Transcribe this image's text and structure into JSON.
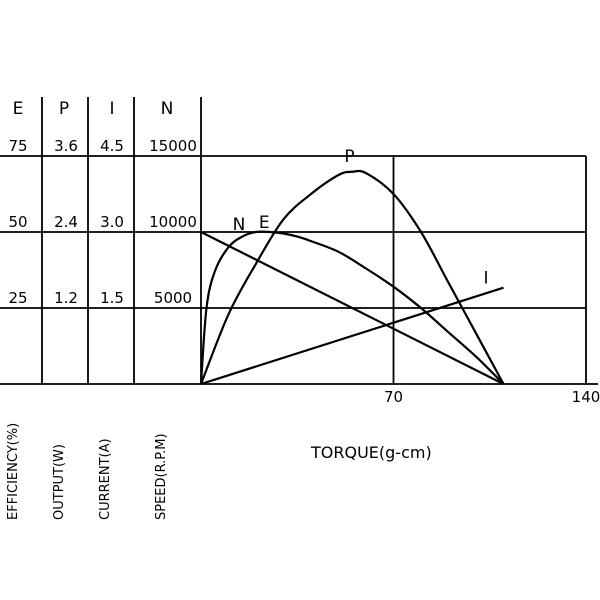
{
  "chart_data": {
    "type": "line",
    "title": "",
    "xlabel": "TORQUE(g-cm)",
    "xlim": [
      0,
      140
    ],
    "x_ticks": [
      {
        "value": 70,
        "label": "70"
      },
      {
        "value": 140,
        "label": "140"
      }
    ],
    "axes": [
      {
        "letter": "E",
        "name": "EFFICIENCY(%)",
        "ticks": [
          "25",
          "50",
          "75"
        ],
        "max": 75
      },
      {
        "letter": "P",
        "name": "OUTPUT(W)",
        "ticks": [
          "1.2",
          "2.4",
          "3.6"
        ],
        "max": 3.6
      },
      {
        "letter": "I",
        "name": "CURRENT(A)",
        "ticks": [
          "1.5",
          "3.0",
          "4.5"
        ],
        "max": 4.5
      },
      {
        "letter": "N",
        "name": "SPEED(R.P.M)",
        "ticks": [
          "5000",
          "10000",
          "15000"
        ],
        "max": 15000
      }
    ],
    "series": [
      {
        "name": "N",
        "x": [
          0,
          110
        ],
        "y": [
          10000,
          0
        ],
        "label_at": [
          8,
          10000
        ]
      },
      {
        "name": "E",
        "x": [
          0,
          2,
          5,
          10,
          15,
          20,
          25,
          30,
          35,
          40,
          50,
          60,
          70,
          80,
          90,
          100,
          110
        ],
        "y": [
          0,
          25,
          37,
          45,
          48.5,
          50,
          50,
          49.5,
          48.5,
          47,
          43.5,
          38,
          32,
          25,
          17,
          9,
          0
        ],
        "label_at": [
          23,
          50
        ]
      },
      {
        "name": "P",
        "x": [
          0,
          10,
          20,
          30,
          40,
          50,
          55,
          60,
          70,
          80,
          90,
          100,
          110
        ],
        "y": [
          0,
          1.1,
          1.9,
          2.6,
          3.0,
          3.3,
          3.35,
          3.33,
          3.0,
          2.4,
          1.6,
          0.8,
          0
        ],
        "label_at": [
          54,
          3.35
        ]
      },
      {
        "name": "I",
        "x": [
          0,
          110
        ],
        "y": [
          0,
          1.9
        ],
        "label_at": [
          108,
          1.9
        ]
      }
    ],
    "grid": true
  }
}
